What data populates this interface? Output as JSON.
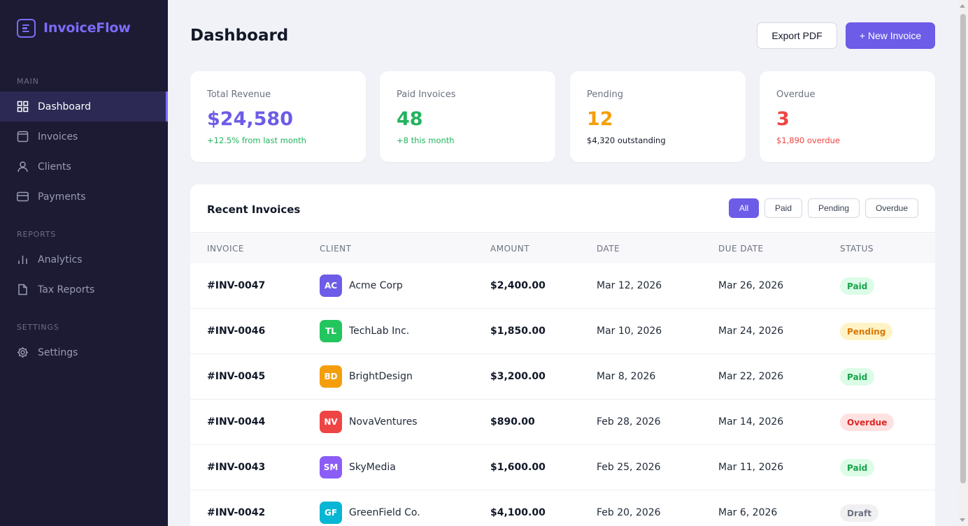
{
  "app": {
    "name": "InvoiceFlow"
  },
  "sidebar": {
    "sections": {
      "main": "MAIN",
      "reports": "REPORTS",
      "settings": "SETTINGS"
    },
    "items": [
      {
        "label": "Dashboard",
        "icon": "grid-icon",
        "active": true
      },
      {
        "label": "Invoices",
        "icon": "document-icon"
      },
      {
        "label": "Clients",
        "icon": "user-icon"
      },
      {
        "label": "Payments",
        "icon": "credit-card-icon"
      },
      {
        "label": "Analytics",
        "icon": "bar-chart-icon"
      },
      {
        "label": "Tax Reports",
        "icon": "file-icon"
      },
      {
        "label": "Settings",
        "icon": "gear-icon"
      }
    ]
  },
  "header": {
    "title": "Dashboard",
    "export_label": "Export PDF",
    "new_label": "+ New Invoice"
  },
  "stats": [
    {
      "label": "Total Revenue",
      "value": "$24,580",
      "sub": "+12.5% from last month",
      "value_color": "#6c5ce7",
      "sub_color": "#22b35e"
    },
    {
      "label": "Paid Invoices",
      "value": "48",
      "sub": "+8 this month",
      "value_color": "#22b35e",
      "sub_color": "#22b35e"
    },
    {
      "label": "Pending",
      "value": "12",
      "sub": "$4,320 outstanding",
      "value_color": "#f59e0b",
      "sub_color": "#111827"
    },
    {
      "label": "Overdue",
      "value": "3",
      "sub": "$1,890 overdue",
      "value_color": "#ef4444",
      "sub_color": "#ef4444"
    }
  ],
  "invoices": {
    "title": "Recent Invoices",
    "filters": [
      "All",
      "Paid",
      "Pending",
      "Overdue"
    ],
    "active_filter": "All",
    "columns": [
      "INVOICE",
      "CLIENT",
      "AMOUNT",
      "DATE",
      "DUE DATE",
      "STATUS"
    ],
    "rows": [
      {
        "id": "#INV-0047",
        "initials": "AC",
        "client": "Acme Corp",
        "avatar_color": "#6c5ce7",
        "amount": "$2,400.00",
        "date": "Mar 12, 2026",
        "due": "Mar 26, 2026",
        "status": "Paid"
      },
      {
        "id": "#INV-0046",
        "initials": "TL",
        "client": "TechLab Inc.",
        "avatar_color": "#22c55e",
        "amount": "$1,850.00",
        "date": "Mar 10, 2026",
        "due": "Mar 24, 2026",
        "status": "Pending"
      },
      {
        "id": "#INV-0045",
        "initials": "BD",
        "client": "BrightDesign",
        "avatar_color": "#f59e0b",
        "amount": "$3,200.00",
        "date": "Mar 8, 2026",
        "due": "Mar 22, 2026",
        "status": "Paid"
      },
      {
        "id": "#INV-0044",
        "initials": "NV",
        "client": "NovaVentures",
        "avatar_color": "#ef4444",
        "amount": "$890.00",
        "date": "Feb 28, 2026",
        "due": "Mar 14, 2026",
        "status": "Overdue"
      },
      {
        "id": "#INV-0043",
        "initials": "SM",
        "client": "SkyMedia",
        "avatar_color": "#8b5cf6",
        "amount": "$1,600.00",
        "date": "Feb 25, 2026",
        "due": "Mar 11, 2026",
        "status": "Paid"
      },
      {
        "id": "#INV-0042",
        "initials": "GF",
        "client": "GreenField Co.",
        "avatar_color": "#06b6d4",
        "amount": "$4,100.00",
        "date": "Feb 20, 2026",
        "due": "Mar 6, 2026",
        "status": "Draft"
      }
    ]
  },
  "status_colors": {
    "Paid": {
      "bg": "#dcfce7",
      "fg": "#16a34a"
    },
    "Pending": {
      "bg": "#fef3c7",
      "fg": "#d97706"
    },
    "Overdue": {
      "bg": "#fee2e2",
      "fg": "#dc2626"
    },
    "Draft": {
      "bg": "#f0f0f3",
      "fg": "#6b7280"
    }
  }
}
